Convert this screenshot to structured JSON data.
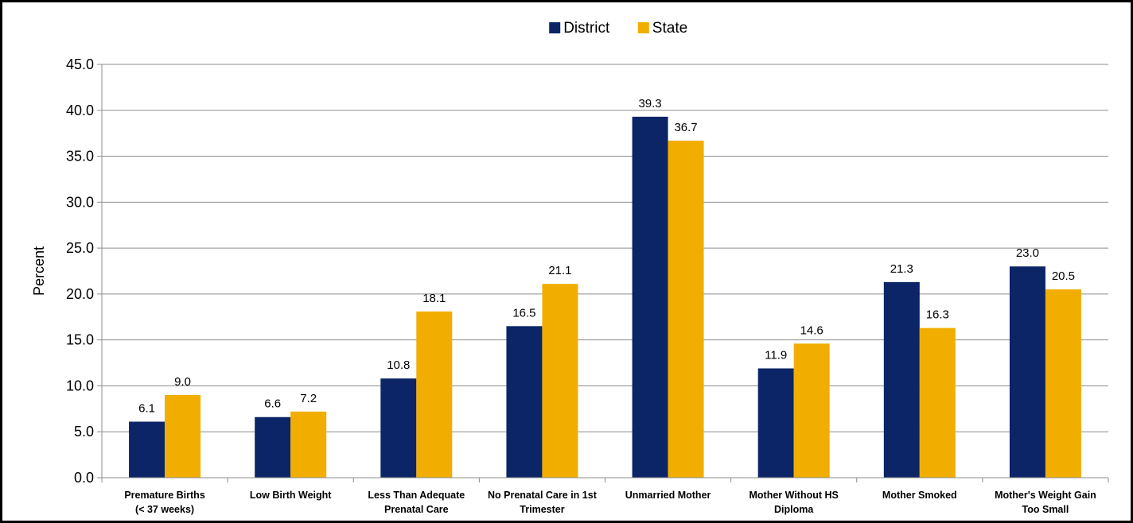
{
  "chart_data": {
    "type": "bar",
    "title": "",
    "xlabel": "",
    "ylabel": "Percent",
    "ylim": [
      0,
      45
    ],
    "ytick_step": 5,
    "ytick_labels": [
      "0.0",
      "5.0",
      "10.0",
      "15.0",
      "20.0",
      "25.0",
      "30.0",
      "35.0",
      "40.0",
      "45.0"
    ],
    "grid": true,
    "legend_position": "top-center",
    "categories": [
      [
        "Premature Births",
        "(< 37 weeks)"
      ],
      [
        "Low Birth Weight"
      ],
      [
        "Less Than Adequate",
        "Prenatal Care"
      ],
      [
        "No Prenatal Care in 1st",
        "Trimester"
      ],
      [
        "Unmarried Mother"
      ],
      [
        "Mother Without HS",
        "Diploma"
      ],
      [
        "Mother Smoked"
      ],
      [
        "Mother's Weight Gain",
        "Too Small"
      ]
    ],
    "series": [
      {
        "name": "District",
        "color": "#0b2566",
        "values": [
          6.1,
          6.6,
          10.8,
          16.5,
          39.3,
          11.9,
          21.3,
          23.0
        ]
      },
      {
        "name": "State",
        "color": "#f2ae00",
        "values": [
          9.0,
          7.2,
          18.1,
          21.1,
          36.7,
          14.6,
          16.3,
          20.5
        ]
      }
    ]
  }
}
